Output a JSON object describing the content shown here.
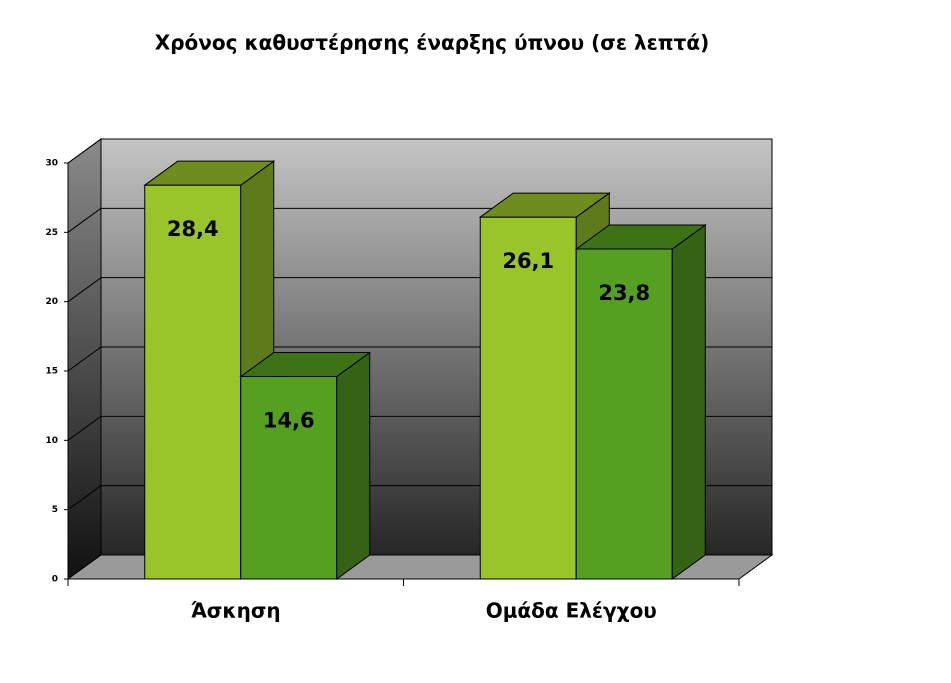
{
  "chart_data": {
    "type": "bar3d",
    "title": "Χρόνος καθυστέρησης έναρξης ύπνου (σε λεπτά)",
    "categories": [
      "Άσκηση",
      "Ομάδα Ελέγχου"
    ],
    "series": [
      {
        "color": "#99c42a",
        "values": [
          28.4,
          26.1
        ],
        "value_labels": [
          "28,4",
          "26,1"
        ]
      },
      {
        "color": "#55a020",
        "values": [
          14.6,
          23.8
        ],
        "value_labels": [
          "14,6",
          "23,8"
        ]
      }
    ],
    "ylim": [
      0,
      30
    ],
    "yticks": [
      0,
      5,
      10,
      15,
      20,
      25,
      30
    ],
    "grid": true
  }
}
